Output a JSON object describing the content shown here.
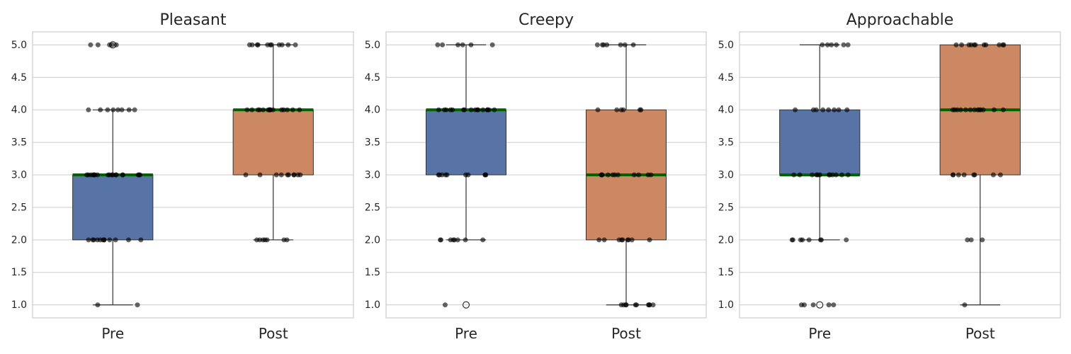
{
  "chart_data": [
    {
      "type": "box",
      "title": "Pleasant",
      "categories": [
        "Pre",
        "Post"
      ],
      "ylim": [
        0.8,
        5.2
      ],
      "yticks": [
        "1.0",
        "1.5",
        "2.0",
        "2.5",
        "3.0",
        "3.5",
        "4.0",
        "4.5",
        "5.0"
      ],
      "grid": "horizontal",
      "boxes": [
        {
          "category": "Pre",
          "whisker_low": 1,
          "q1": 2,
          "median": 3,
          "q3": 3,
          "whisker_high": 4,
          "outliers": [
            5
          ]
        },
        {
          "category": "Post",
          "whisker_low": 2,
          "q1": 3,
          "median": 4,
          "q3": 4,
          "whisker_high": 5,
          "outliers": []
        }
      ],
      "points": [
        {
          "category": "Pre",
          "values": [
            5,
            5,
            5,
            5,
            5,
            4,
            4,
            4,
            4,
            4,
            4,
            4,
            4,
            3,
            3,
            3,
            3,
            3,
            3,
            3,
            3,
            3,
            3,
            3,
            3,
            3,
            3,
            3,
            3,
            3,
            3,
            2,
            2,
            2,
            2,
            2,
            2,
            2,
            2,
            2,
            2,
            2,
            2,
            1,
            1
          ]
        },
        {
          "category": "Post",
          "values": [
            5,
            5,
            5,
            5,
            5,
            5,
            5,
            5,
            5,
            5,
            5,
            4,
            4,
            4,
            4,
            4,
            4,
            4,
            4,
            4,
            4,
            4,
            4,
            4,
            4,
            4,
            4,
            3,
            3,
            3,
            3,
            3,
            3,
            3,
            3,
            3,
            3,
            2,
            2,
            2,
            2,
            2,
            2,
            2
          ]
        }
      ]
    },
    {
      "type": "box",
      "title": "Creepy",
      "categories": [
        "Pre",
        "Post"
      ],
      "ylim": [
        0.8,
        5.2
      ],
      "yticks": [
        "1.0",
        "1.5",
        "2.0",
        "2.5",
        "3.0",
        "3.5",
        "4.0",
        "4.5",
        "5.0"
      ],
      "grid": "horizontal",
      "boxes": [
        {
          "category": "Pre",
          "whisker_low": 2,
          "q1": 3,
          "median": 4,
          "q3": 4,
          "whisker_high": 5,
          "outliers": [
            1
          ]
        },
        {
          "category": "Post",
          "whisker_low": 1,
          "q1": 2,
          "median": 3,
          "q3": 4,
          "whisker_high": 5,
          "outliers": []
        }
      ],
      "points": [
        {
          "category": "Pre",
          "values": [
            5,
            5,
            5,
            5,
            5,
            5,
            4,
            4,
            4,
            4,
            4,
            4,
            4,
            4,
            4,
            4,
            4,
            4,
            4,
            4,
            4,
            4,
            3,
            3,
            3,
            3,
            3,
            3,
            3,
            3,
            3,
            3,
            2,
            2,
            2,
            2,
            2,
            2,
            2,
            2,
            1
          ]
        },
        {
          "category": "Post",
          "values": [
            5,
            5,
            5,
            5,
            5,
            5,
            5,
            4,
            4,
            4,
            4,
            4,
            4,
            3,
            3,
            3,
            3,
            3,
            3,
            3,
            3,
            3,
            3,
            3,
            2,
            2,
            2,
            2,
            2,
            2,
            2,
            2,
            2,
            1,
            1,
            1,
            1,
            1,
            1,
            1,
            1,
            1,
            1
          ]
        }
      ]
    },
    {
      "type": "box",
      "title": "Approachable",
      "categories": [
        "Pre",
        "Post"
      ],
      "ylim": [
        0.8,
        5.2
      ],
      "yticks": [
        "1.0",
        "1.5",
        "2.0",
        "2.5",
        "3.0",
        "3.5",
        "4.0",
        "4.5",
        "5.0"
      ],
      "grid": "horizontal",
      "boxes": [
        {
          "category": "Pre",
          "whisker_low": 2,
          "q1": 3,
          "median": 3,
          "q3": 4,
          "whisker_high": 5,
          "outliers": [
            1
          ]
        },
        {
          "category": "Post",
          "whisker_low": 1,
          "q1": 3,
          "median": 4,
          "q3": 5,
          "whisker_high": 5,
          "outliers": []
        }
      ],
      "points": [
        {
          "category": "Pre",
          "values": [
            5,
            5,
            5,
            5,
            5,
            5,
            4,
            4,
            4,
            4,
            4,
            4,
            4,
            4,
            3,
            3,
            3,
            3,
            3,
            3,
            3,
            3,
            3,
            3,
            3,
            3,
            2,
            2,
            2,
            2,
            2,
            2,
            2,
            2,
            1,
            1,
            1,
            1,
            1
          ]
        },
        {
          "category": "Post",
          "values": [
            5,
            5,
            5,
            5,
            5,
            5,
            5,
            5,
            5,
            5,
            5,
            4,
            4,
            4,
            4,
            4,
            4,
            4,
            4,
            4,
            4,
            4,
            4,
            4,
            3,
            3,
            3,
            3,
            3,
            3,
            3,
            3,
            2,
            2,
            2,
            1
          ]
        }
      ]
    }
  ],
  "colors": {
    "pre_box": "#5874a6",
    "post_box": "#cc8862",
    "median": "#006400",
    "grid": "#cccccc",
    "spine": "#cccccc",
    "whisker": "#333333",
    "point": "#000000",
    "text": "#262626"
  }
}
